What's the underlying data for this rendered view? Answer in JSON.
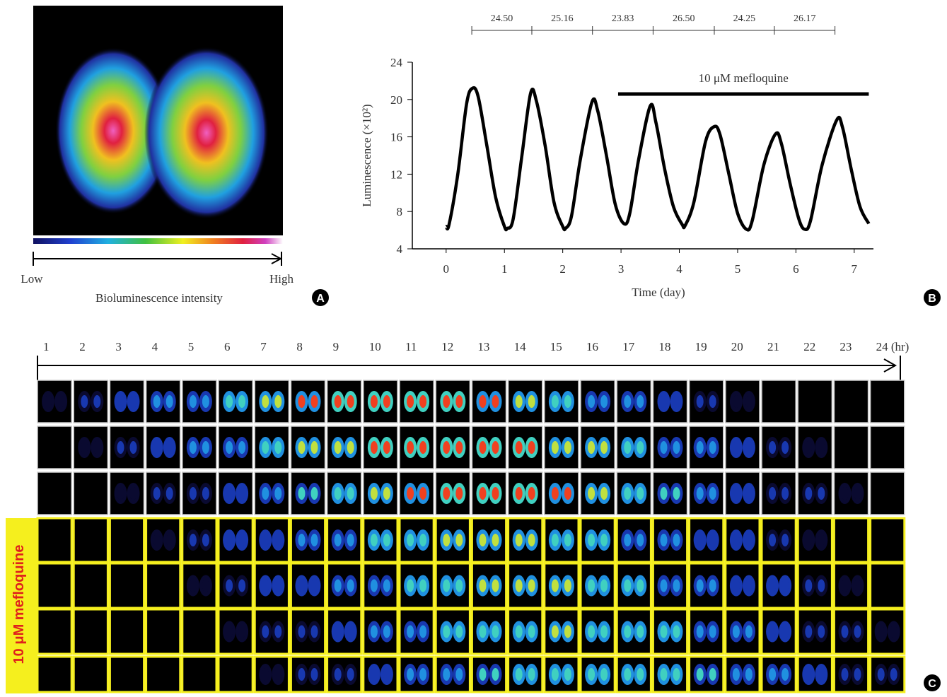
{
  "panel_a": {
    "low": "Low",
    "high": "High",
    "caption": "Bioluminescence intensity",
    "letter": "A"
  },
  "chart_data": {
    "type": "line",
    "letter": "B",
    "x_label": "Time (day)",
    "y_label": "Luminescence (×10²)",
    "color": "#000000",
    "x": [
      0.0,
      0.05,
      0.2,
      0.35,
      0.45,
      0.55,
      0.7,
      0.85,
      1.0,
      1.05,
      1.15,
      1.3,
      1.45,
      1.55,
      1.7,
      1.85,
      2.0,
      2.05,
      2.15,
      2.3,
      2.5,
      2.6,
      2.75,
      2.9,
      3.05,
      3.15,
      3.3,
      3.5,
      3.6,
      3.75,
      3.9,
      4.05,
      4.1,
      4.25,
      4.45,
      4.6,
      4.7,
      4.85,
      5.0,
      5.15,
      5.25,
      5.45,
      5.65,
      5.75,
      5.9,
      6.05,
      6.15,
      6.25,
      6.45,
      6.7,
      6.8,
      6.95,
      7.1,
      7.25
    ],
    "values": [
      6.4,
      6.6,
      12,
      19.5,
      21.2,
      20.3,
      15,
      9.5,
      6.4,
      6.2,
      7.2,
      14,
      20.7,
      19.8,
      15,
      9,
      6.4,
      6.2,
      7.5,
      13.5,
      19.7,
      18.8,
      14,
      8.8,
      6.7,
      7.8,
      13.5,
      19.3,
      17.5,
      12.5,
      8.5,
      6.6,
      6.5,
      9,
      15.5,
      17.1,
      16.2,
      12,
      7.8,
      6.1,
      7,
      13,
      16.3,
      15.3,
      11,
      7.2,
      6.1,
      7,
      13,
      17.8,
      17,
      12.5,
      8.5,
      6.7
    ],
    "xlim": [
      -0.58,
      7.33
    ],
    "ylim": [
      4,
      24
    ],
    "xticks": [
      0,
      1,
      2,
      3,
      4,
      5,
      6,
      7
    ],
    "yticks": [
      4,
      8,
      12,
      16,
      20,
      24
    ],
    "period_peaks": [
      0.44,
      1.47,
      2.51,
      3.55,
      4.6,
      5.63,
      6.67
    ],
    "periods": [
      {
        "value": 24.5,
        "label": "24.50"
      },
      {
        "value": 25.16,
        "label": "25.16"
      },
      {
        "value": 23.83,
        "label": "23.83"
      },
      {
        "value": 26.5,
        "label": "26.50"
      },
      {
        "value": 24.25,
        "label": "24.25"
      },
      {
        "value": 26.17,
        "label": "26.17"
      }
    ],
    "treatment": {
      "label": "10 μM mefloquine",
      "start": 2.95,
      "end": 7.25
    }
  },
  "panel_c": {
    "letter": "C",
    "treatment_label": "10 μM mefloquine",
    "hours": [
      "1",
      "2",
      "3",
      "4",
      "5",
      "6",
      "7",
      "8",
      "9",
      "10",
      "11",
      "12",
      "13",
      "14",
      "15",
      "16",
      "17",
      "18",
      "19",
      "20",
      "21",
      "22",
      "23",
      "24 (hr)"
    ]
  }
}
